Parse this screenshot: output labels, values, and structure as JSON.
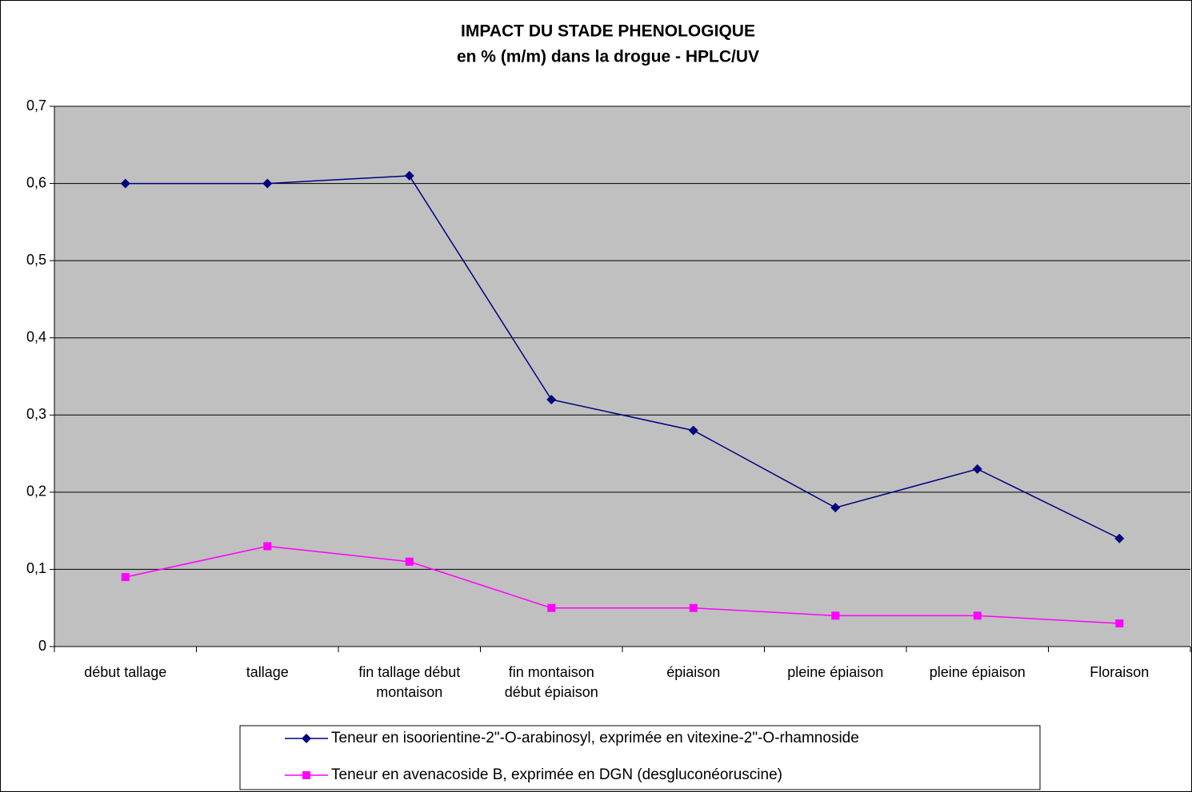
{
  "chart_data": {
    "type": "line",
    "title": "IMPACT DU STADE PHENOLOGIQUE",
    "subtitle": "en % (m/m) dans la drogue - HPLC/UV",
    "categories": [
      "début tallage",
      "tallage",
      "fin tallage début montaison",
      "fin montaison début épiaison",
      "épiaison",
      "pleine épiaison",
      "pleine épiaison",
      "Floraison"
    ],
    "series": [
      {
        "name": "Teneur en isoorientine-2\"-O-arabinosyl, exprimée en vitexine-2\"-O-rhamnoside",
        "color": "#000080",
        "marker": "diamond",
        "values": [
          0.6,
          0.6,
          0.61,
          0.32,
          0.28,
          0.18,
          0.23,
          0.14
        ]
      },
      {
        "name": "Teneur en avenacoside B, exprimée en DGN (desgluconéoruscine)",
        "color": "#ff00ff",
        "marker": "square",
        "values": [
          0.09,
          0.13,
          0.11,
          0.05,
          0.05,
          0.04,
          0.04,
          0.03
        ]
      }
    ],
    "ylim": [
      0,
      0.7
    ],
    "yticks": [
      0,
      {
        "value": 0.1,
        "label": "0,1"
      },
      {
        "value": 0.2,
        "label": "0,2"
      },
      {
        "value": 0.3,
        "label": "0,3"
      },
      {
        "value": 0.4,
        "label": "0,4"
      },
      {
        "value": 0.5,
        "label": "0,5"
      },
      {
        "value": 0.6,
        "label": "0,6"
      },
      {
        "value": 0.7,
        "label": "0,7"
      }
    ],
    "grid": true,
    "legend": "bottom"
  }
}
